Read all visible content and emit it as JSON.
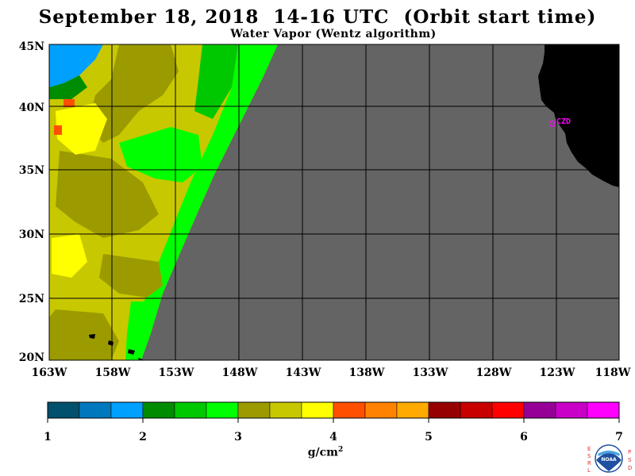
{
  "title": "September 18, 2018  14-16 UTC  (Orbit start time)",
  "subtitle": "Water Vapor (Wentz algorithm)",
  "map": {
    "lat_labels": [
      "45N",
      "40N",
      "35N",
      "30N",
      "25N",
      "20N"
    ],
    "lon_labels": [
      "163W",
      "158W",
      "153W",
      "148W",
      "143W",
      "138W",
      "133W",
      "128W",
      "123W",
      "118W"
    ],
    "station_label": "CZD",
    "colors": {
      "no_data": "#646464",
      "land": "#000000",
      "grid": "#000000",
      "station": "#ff00ff"
    }
  },
  "colorbar": {
    "colors": [
      "#00506e",
      "#0078be",
      "#00a0ff",
      "#008c00",
      "#00c800",
      "#00ff00",
      "#9b9b00",
      "#c8c800",
      "#ffff00",
      "#ff5000",
      "#ff8200",
      "#ffaa00",
      "#960000",
      "#c80000",
      "#ff0000",
      "#960096",
      "#c800c8",
      "#ff00ff"
    ],
    "tick_labels": [
      "1",
      "2",
      "3",
      "4",
      "5",
      "6",
      "7"
    ],
    "units": "g/cm",
    "units_exponent": "2"
  },
  "logo": {
    "left_letters": "ESRL",
    "right_letters": "PSD",
    "center_text": "NOAA"
  }
}
